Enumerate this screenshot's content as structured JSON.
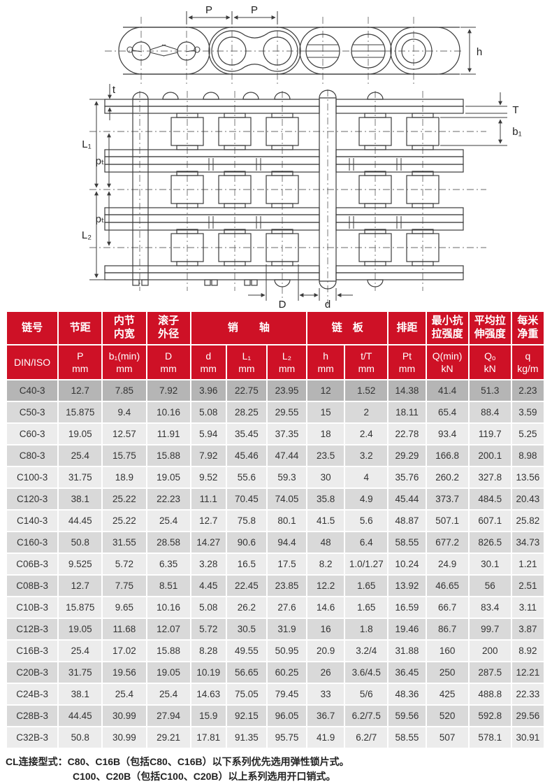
{
  "diagram": {
    "side_view": {
      "dim_p1": "P",
      "dim_p2": "P",
      "dim_h": "h"
    },
    "section_view": {
      "dim_t": "t",
      "dim_T": "T",
      "dim_b1": "b₁",
      "dim_L1": "L₁",
      "dim_pt_upper": "pₜ",
      "dim_pt_lower": "pₜ",
      "dim_L2": "L₂",
      "dim_D": "D",
      "dim_d": "d"
    }
  },
  "table": {
    "accent_color": "#ce1126",
    "header_row1": [
      "链号",
      "节距",
      "内节\n内宽",
      "滚子\n外径",
      "销　　轴",
      "链　板",
      "排距",
      "最小抗\n拉强度",
      "平均拉\n伸强度",
      "每米\n净重"
    ],
    "header_row2": [
      "DIN/ISO",
      "P\nmm",
      "b₁(min)\nmm",
      "D\nmm",
      "d\nmm",
      "L₁\nmm",
      "L₂\nmm",
      "h\nmm",
      "t/T\nmm",
      "Pt\nmm",
      "Q(min)\nkN",
      "Qₒ\nkN",
      "q\nkg/m"
    ],
    "rows": [
      [
        "C40-3",
        "12.7",
        "7.85",
        "7.92",
        "3.96",
        "22.75",
        "23.95",
        "12",
        "1.52",
        "14.38",
        "41.4",
        "51.3",
        "2.23"
      ],
      [
        "C50-3",
        "15.875",
        "9.4",
        "10.16",
        "5.08",
        "28.25",
        "29.55",
        "15",
        "2",
        "18.11",
        "65.4",
        "88.4",
        "3.59"
      ],
      [
        "C60-3",
        "19.05",
        "12.57",
        "11.91",
        "5.94",
        "35.45",
        "37.35",
        "18",
        "2.4",
        "22.78",
        "93.4",
        "119.7",
        "5.25"
      ],
      [
        "C80-3",
        "25.4",
        "15.75",
        "15.88",
        "7.92",
        "45.46",
        "47.44",
        "23.5",
        "3.2",
        "29.29",
        "166.8",
        "200.1",
        "8.98"
      ],
      [
        "C100-3",
        "31.75",
        "18.9",
        "19.05",
        "9.52",
        "55.6",
        "59.3",
        "30",
        "4",
        "35.76",
        "260.2",
        "327.8",
        "13.56"
      ],
      [
        "C120-3",
        "38.1",
        "25.22",
        "22.23",
        "11.1",
        "70.45",
        "74.05",
        "35.8",
        "4.9",
        "45.44",
        "373.7",
        "484.5",
        "20.43"
      ],
      [
        "C140-3",
        "44.45",
        "25.22",
        "25.4",
        "12.7",
        "75.8",
        "80.1",
        "41.5",
        "5.6",
        "48.87",
        "507.1",
        "607.1",
        "25.82"
      ],
      [
        "C160-3",
        "50.8",
        "31.55",
        "28.58",
        "14.27",
        "90.6",
        "94.4",
        "48",
        "6.4",
        "58.55",
        "677.2",
        "826.5",
        "34.73"
      ],
      [
        "C06B-3",
        "9.525",
        "5.72",
        "6.35",
        "3.28",
        "16.5",
        "17.5",
        "8.2",
        "1.0/1.27",
        "10.24",
        "24.9",
        "30.1",
        "1.21"
      ],
      [
        "C08B-3",
        "12.7",
        "7.75",
        "8.51",
        "4.45",
        "22.45",
        "23.85",
        "12.2",
        "1.65",
        "13.92",
        "46.65",
        "56",
        "2.51"
      ],
      [
        "C10B-3",
        "15.875",
        "9.65",
        "10.16",
        "5.08",
        "26.2",
        "27.6",
        "14.6",
        "1.65",
        "16.59",
        "66.7",
        "83.4",
        "3.11"
      ],
      [
        "C12B-3",
        "19.05",
        "11.68",
        "12.07",
        "5.72",
        "30.5",
        "31.9",
        "16",
        "1.8",
        "19.46",
        "86.7",
        "99.7",
        "3.87"
      ],
      [
        "C16B-3",
        "25.4",
        "17.02",
        "15.88",
        "8.28",
        "49.55",
        "50.95",
        "20.9",
        "3.2/4",
        "31.88",
        "160",
        "200",
        "8.92"
      ],
      [
        "C20B-3",
        "31.75",
        "19.56",
        "19.05",
        "10.19",
        "56.65",
        "60.25",
        "26",
        "3.6/4.5",
        "36.45",
        "250",
        "287.5",
        "12.21"
      ],
      [
        "C24B-3",
        "38.1",
        "25.4",
        "25.4",
        "14.63",
        "75.05",
        "79.45",
        "33",
        "5/6",
        "48.36",
        "425",
        "488.8",
        "22.33"
      ],
      [
        "C28B-3",
        "44.45",
        "30.99",
        "27.94",
        "15.9",
        "92.15",
        "96.05",
        "36.7",
        "6.2/7.5",
        "59.56",
        "520",
        "592.8",
        "29.56"
      ],
      [
        "C32B-3",
        "50.8",
        "30.99",
        "29.21",
        "17.81",
        "91.35",
        "95.75",
        "41.9",
        "6.2/7",
        "58.55",
        "507",
        "578.1",
        "30.91"
      ]
    ]
  },
  "footer": {
    "line1": "CL连接型式：C80、C16B（包括C80、C16B）以下系列优先选用弹性锁片式。",
    "line2": "C100、C20B（包括C100、C20B）以上系列选用开口销式。"
  }
}
